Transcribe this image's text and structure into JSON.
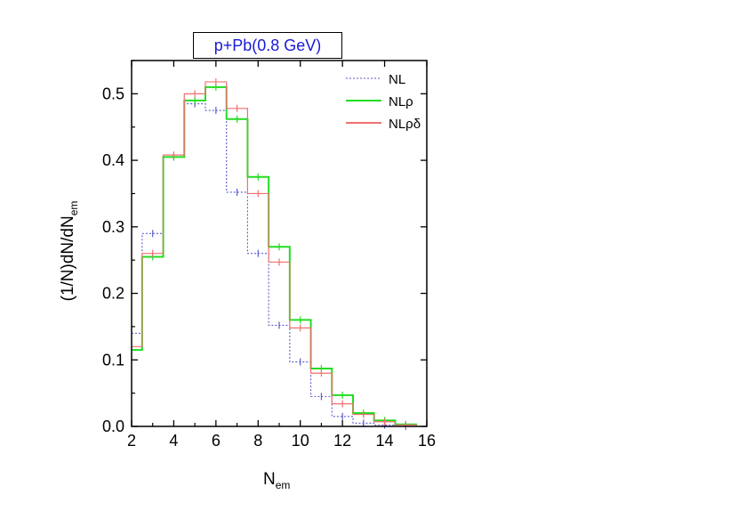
{
  "chart_data": {
    "type": "line",
    "title": "p+Pb(0.8 GeV)",
    "ylabel_main": "(1/N)dN/dN",
    "ylabel_sub": "em",
    "xlabel_main": "N",
    "xlabel_sub": "em",
    "xlim": [
      2,
      16
    ],
    "ylim": [
      0.0,
      0.55
    ],
    "x_ticks": [
      2,
      4,
      6,
      8,
      10,
      12,
      14,
      16
    ],
    "y_ticks": [
      0.0,
      0.1,
      0.2,
      0.3,
      0.4,
      0.5
    ],
    "y_tick_labels": [
      "0.0",
      "0.1",
      "0.2",
      "0.3",
      "0.4",
      "0.5"
    ],
    "legend_position": "top-right",
    "bin_edges": [
      2.5,
      3.5,
      4.5,
      5.5,
      6.5,
      7.5,
      8.5,
      9.5,
      10.5,
      11.5,
      12.5,
      13.5,
      14.5,
      15.5
    ],
    "series": [
      {
        "name": "NL",
        "color": "#5a5ad0",
        "style": "dotted",
        "first_value": 0.14,
        "values": [
          0.29,
          0.405,
          0.485,
          0.475,
          0.352,
          0.26,
          0.152,
          0.097,
          0.045,
          0.015,
          0.005,
          0.002,
          0.0
        ]
      },
      {
        "name": "NLρ",
        "color": "#22dd22",
        "style": "solid",
        "first_value": 0.115,
        "values": [
          0.255,
          0.405,
          0.49,
          0.51,
          0.462,
          0.375,
          0.27,
          0.16,
          0.087,
          0.047,
          0.02,
          0.009,
          0.003
        ]
      },
      {
        "name": "NLρδ",
        "color": "#f07070",
        "style": "solid",
        "first_value": 0.12,
        "values": [
          0.26,
          0.408,
          0.5,
          0.518,
          0.478,
          0.35,
          0.247,
          0.148,
          0.08,
          0.034,
          0.018,
          0.007,
          0.002
        ]
      }
    ]
  }
}
